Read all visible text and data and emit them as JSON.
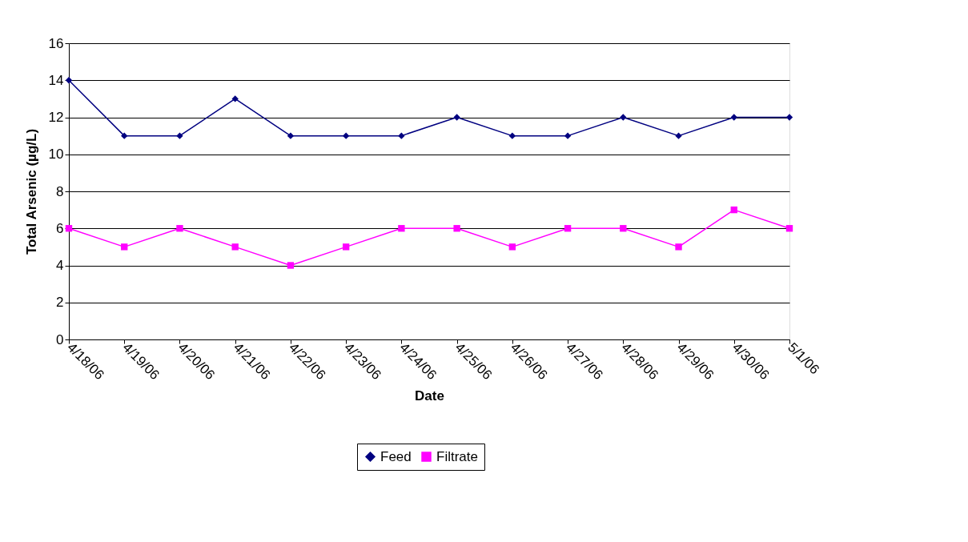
{
  "chart_data": {
    "type": "line",
    "xlabel": "Date",
    "ylabel": "Total Arsenic (µg/L)",
    "categories": [
      "4/18/06",
      "4/19/06",
      "4/20/06",
      "4/21/06",
      "4/22/06",
      "4/23/06",
      "4/24/06",
      "4/25/06",
      "4/26/06",
      "4/27/06",
      "4/28/06",
      "4/29/06",
      "4/30/06",
      "5/1/06"
    ],
    "series": [
      {
        "name": "Feed",
        "color": "#000080",
        "marker": "diamond",
        "values": [
          14,
          11,
          11,
          13,
          11,
          11,
          11,
          12,
          11,
          11,
          12,
          11,
          12,
          12
        ]
      },
      {
        "name": "Filtrate",
        "color": "#ff00ff",
        "marker": "square",
        "values": [
          6,
          5,
          6,
          5,
          4,
          5,
          6,
          6,
          5,
          6,
          6,
          5,
          7,
          6
        ]
      }
    ],
    "ylim": [
      0,
      16
    ],
    "yticks": [
      0,
      2,
      4,
      6,
      8,
      10,
      12,
      14,
      16
    ],
    "grid": "y",
    "legend": "bottom",
    "line_style": "solid"
  }
}
